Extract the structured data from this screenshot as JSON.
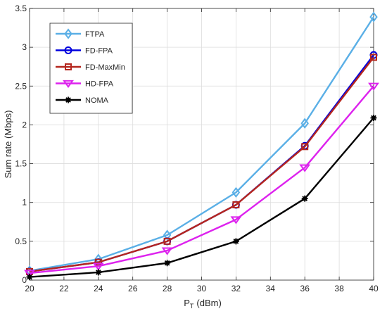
{
  "chart_data": {
    "type": "line",
    "xlabel": "P",
    "xlabel_sub": "T",
    "xlabel_unit": "(dBm)",
    "ylabel": "Sum rate (Mbps)",
    "xlim": [
      20,
      40
    ],
    "ylim": [
      0,
      3.5
    ],
    "xticks": [
      "20",
      "22",
      "24",
      "26",
      "28",
      "30",
      "32",
      "34",
      "36",
      "38",
      "40"
    ],
    "yticks": [
      "0",
      "0.5",
      "1",
      "1.5",
      "2",
      "2.5",
      "3",
      "3.5"
    ],
    "grid": true,
    "legend_position": "top-left",
    "x": [
      20,
      24,
      28,
      32,
      36,
      40
    ],
    "series": [
      {
        "name": "FTPA",
        "color": "#5aafe6",
        "marker": "diamond",
        "values": [
          0.12,
          0.27,
          0.58,
          1.13,
          2.02,
          3.39
        ]
      },
      {
        "name": "FD-FPA",
        "color": "#0000dd",
        "marker": "circle",
        "values": [
          0.11,
          0.23,
          0.5,
          0.97,
          1.73,
          2.9
        ]
      },
      {
        "name": "FD-MaxMin",
        "color": "#b5261e",
        "marker": "square",
        "values": [
          0.11,
          0.23,
          0.5,
          0.97,
          1.72,
          2.87
        ]
      },
      {
        "name": "HD-FPA",
        "color": "#dd22ee",
        "marker": "triangle-down",
        "values": [
          0.09,
          0.18,
          0.38,
          0.78,
          1.45,
          2.5
        ]
      },
      {
        "name": "NOMA",
        "color": "#000000",
        "marker": "star",
        "values": [
          0.04,
          0.1,
          0.22,
          0.5,
          1.05,
          2.09
        ]
      }
    ]
  }
}
